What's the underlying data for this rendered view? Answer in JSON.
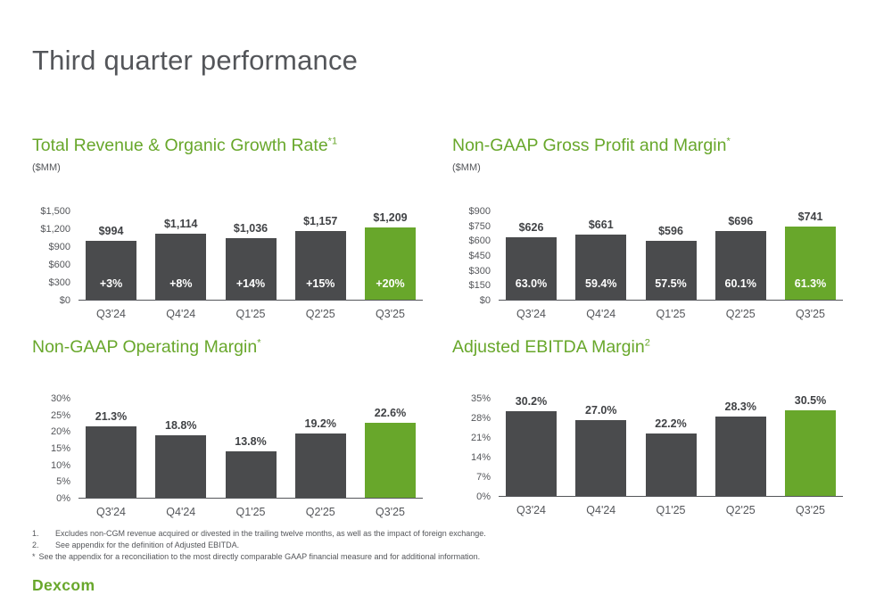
{
  "page": {
    "title": "Third quarter performance",
    "logo_text": "Dexcom"
  },
  "colors": {
    "accent_green": "#68A72B",
    "bar_dark": "#4A4B4D"
  },
  "footnotes": [
    {
      "marker": "1.",
      "text": "Excludes non-CGM revenue acquired or divested in the trailing twelve months, as well as the impact of foreign exchange."
    },
    {
      "marker": "2.",
      "text": "See appendix for the definition of Adjusted EBITDA."
    },
    {
      "marker": "*",
      "text": "See the appendix for a reconciliation to the most directly comparable GAAP financial measure and for additional information."
    }
  ],
  "chart_data": [
    {
      "type": "bar",
      "title": "Total Revenue & Organic Growth Rate",
      "sup": "*1",
      "subtitle": "($MM)",
      "categories": [
        "Q3'24",
        "Q4'24",
        "Q1'25",
        "Q2'25",
        "Q3'25"
      ],
      "values": [
        994,
        1114,
        1036,
        1157,
        1209
      ],
      "value_labels": [
        "$994",
        "$1,114",
        "$1,036",
        "$1,157",
        "$1,209"
      ],
      "inside_labels": [
        "+3%",
        "+8%",
        "+14%",
        "+15%",
        "+20%"
      ],
      "y_ticks": [
        "$1,500",
        "$1,200",
        "$900",
        "$600",
        "$300",
        "$0"
      ],
      "ylim": [
        0,
        1500
      ],
      "highlight_index": 4,
      "legend": "none",
      "grid": false
    },
    {
      "type": "bar",
      "title": "Non-GAAP Gross Profit and Margin",
      "sup": "*",
      "subtitle": "($MM)",
      "categories": [
        "Q3'24",
        "Q4'24",
        "Q1'25",
        "Q2'25",
        "Q3'25"
      ],
      "values": [
        626,
        661,
        596,
        696,
        741
      ],
      "value_labels": [
        "$626",
        "$661",
        "$596",
        "$696",
        "$741"
      ],
      "inside_labels": [
        "63.0%",
        "59.4%",
        "57.5%",
        "60.1%",
        "61.3%"
      ],
      "y_ticks": [
        "$900",
        "$750",
        "$600",
        "$450",
        "$300",
        "$150",
        "$0"
      ],
      "ylim": [
        0,
        900
      ],
      "highlight_index": 4,
      "legend": "none",
      "grid": false
    },
    {
      "type": "bar",
      "title": "Non-GAAP Operating Margin",
      "sup": "*",
      "subtitle": "",
      "categories": [
        "Q3'24",
        "Q4'24",
        "Q1'25",
        "Q2'25",
        "Q3'25"
      ],
      "values": [
        21.3,
        18.8,
        13.8,
        19.2,
        22.6
      ],
      "value_labels": [
        "21.3%",
        "18.8%",
        "13.8%",
        "19.2%",
        "22.6%"
      ],
      "inside_labels": null,
      "y_ticks": [
        "30%",
        "25%",
        "20%",
        "15%",
        "10%",
        "5%",
        "0%"
      ],
      "ylim": [
        0,
        30
      ],
      "highlight_index": 4,
      "legend": "none",
      "grid": false
    },
    {
      "type": "bar",
      "title": "Adjusted EBITDA Margin",
      "sup": "2",
      "subtitle": "",
      "categories": [
        "Q3'24",
        "Q4'24",
        "Q1'25",
        "Q2'25",
        "Q3'25"
      ],
      "values": [
        30.2,
        27.0,
        22.2,
        28.3,
        30.5
      ],
      "value_labels": [
        "30.2%",
        "27.0%",
        "22.2%",
        "28.3%",
        "30.5%"
      ],
      "inside_labels": null,
      "y_ticks": [
        "35%",
        "28%",
        "21%",
        "14%",
        "7%",
        "0%"
      ],
      "ylim": [
        0,
        35
      ],
      "highlight_index": 4,
      "legend": "none",
      "grid": false
    }
  ]
}
